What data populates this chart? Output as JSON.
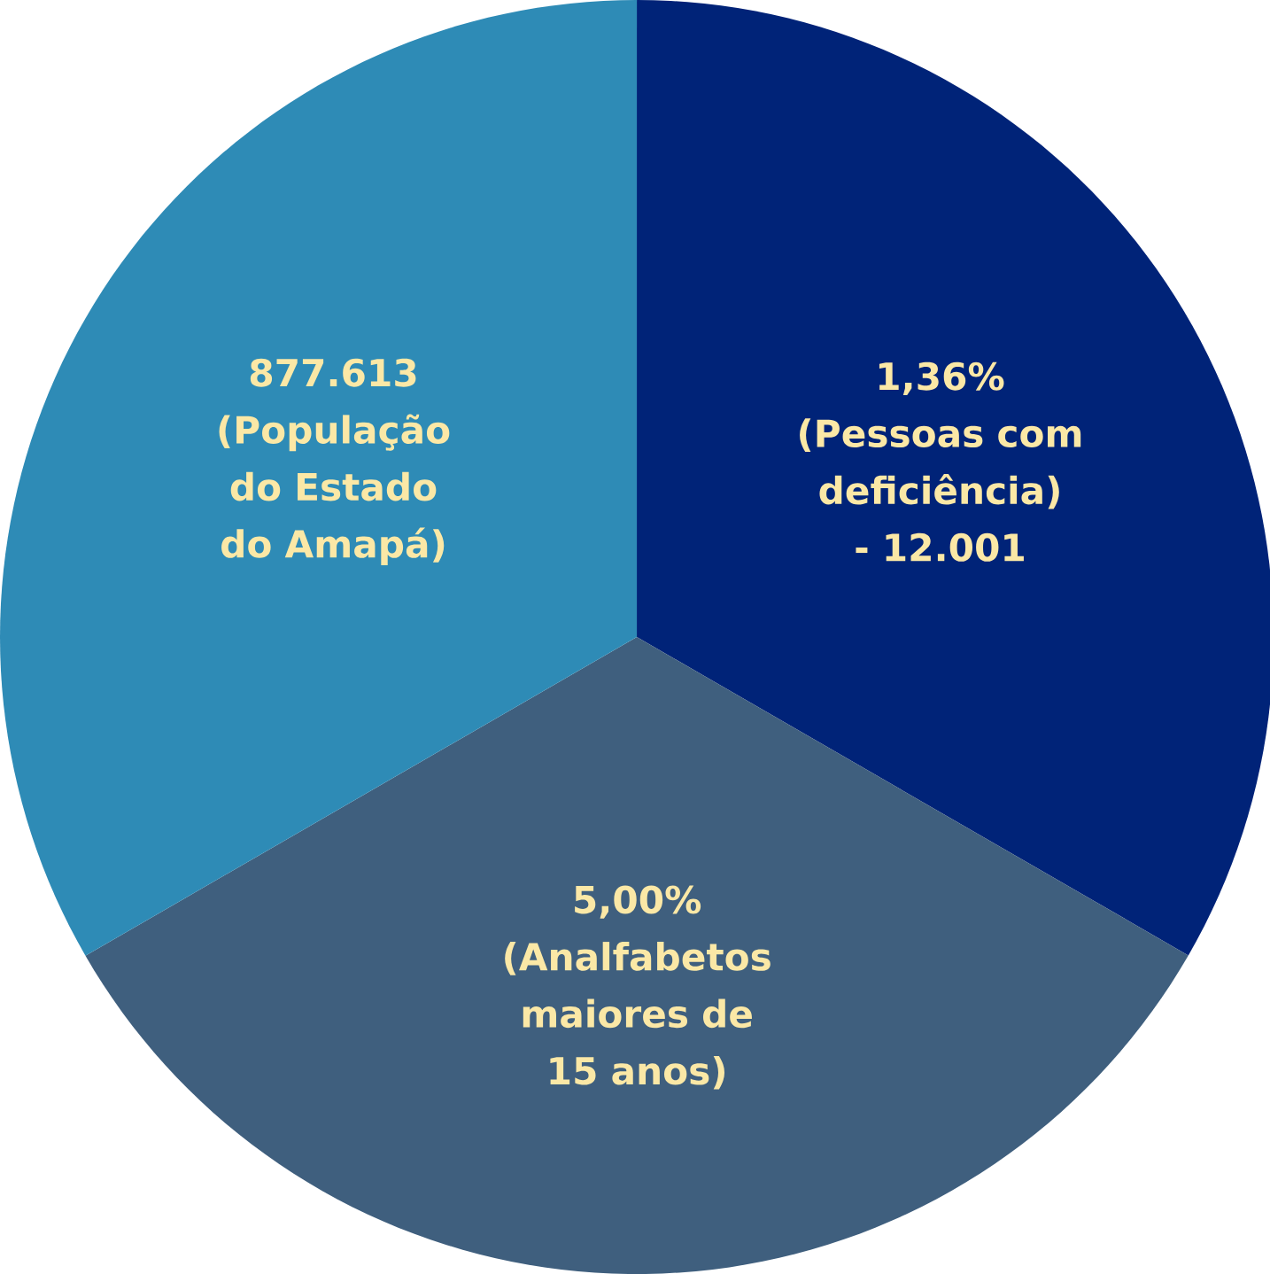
{
  "chart_data": {
    "type": "pie",
    "categories": [
      "1,36% (Pessoas com deficiência) - 12.001",
      "5,00% (Analfabetos maiores de 15 anos)",
      "877.613 (População do Estado do Amapá)"
    ],
    "values": [
      33.33,
      33.33,
      33.34
    ],
    "colors": [
      "#002378",
      "#3f5f7e",
      "#2e8bb6"
    ]
  }
}
